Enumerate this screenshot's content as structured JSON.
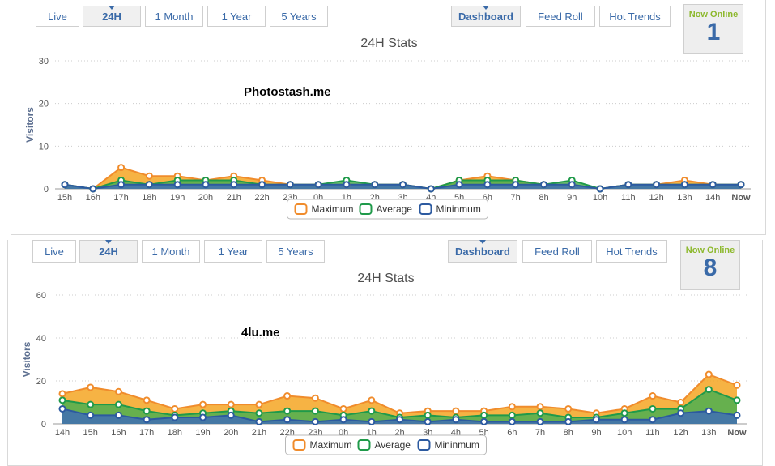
{
  "tabs_left": [
    "Live",
    "24H",
    "1 Month",
    "1 Year",
    "5 Years"
  ],
  "tabs_right": [
    "Dashboard",
    "Feed Roll",
    "Hot Trends"
  ],
  "online_label": "Now Online",
  "colors": {
    "maximum": "#f5a623",
    "average": "#4caf50",
    "minimum": "#3f6eb5",
    "max_stroke": "#f08c2c",
    "avg_stroke": "#1f9a4a",
    "min_stroke": "#2c5aa0"
  },
  "chart_data": [
    {
      "type": "area",
      "title": "24H Stats",
      "ylabel": "Visitors",
      "xlabel": "",
      "site_label": "Photostash.me",
      "now_online": "1",
      "ylim": [
        0,
        30
      ],
      "yticks": [
        0,
        10,
        20,
        30
      ],
      "grid": true,
      "legend_position": "bottom-center",
      "x": [
        "15h",
        "16h",
        "17h",
        "18h",
        "19h",
        "20h",
        "21h",
        "22h",
        "23h",
        "0h",
        "1h",
        "2h",
        "3h",
        "4h",
        "5h",
        "6h",
        "7h",
        "8h",
        "9h",
        "10h",
        "11h",
        "12h",
        "13h",
        "14h",
        "Now"
      ],
      "series": [
        {
          "name": "Maximum",
          "values": [
            1,
            0,
            5,
            3,
            3,
            2,
            3,
            2,
            1,
            1,
            1,
            1,
            1,
            0,
            2,
            3,
            2,
            1,
            1,
            0,
            1,
            1,
            2,
            1,
            1
          ]
        },
        {
          "name": "Average",
          "values": [
            1,
            0,
            2,
            1,
            2,
            2,
            2,
            1,
            1,
            1,
            2,
            1,
            1,
            0,
            2,
            2,
            2,
            1,
            2,
            0,
            1,
            1,
            1,
            1,
            1
          ]
        },
        {
          "name": "Mininmum",
          "values": [
            1,
            0,
            1,
            1,
            1,
            1,
            1,
            1,
            1,
            1,
            1,
            1,
            1,
            0,
            1,
            1,
            1,
            1,
            1,
            0,
            1,
            1,
            1,
            1,
            1
          ]
        }
      ]
    },
    {
      "type": "area",
      "title": "24H Stats",
      "ylabel": "Visitors",
      "xlabel": "",
      "site_label": "4lu.me",
      "now_online": "8",
      "ylim": [
        0,
        60
      ],
      "yticks": [
        0,
        20,
        40,
        60
      ],
      "grid": true,
      "legend_position": "bottom-center",
      "x": [
        "14h",
        "15h",
        "16h",
        "17h",
        "18h",
        "19h",
        "20h",
        "21h",
        "22h",
        "23h",
        "0h",
        "1h",
        "2h",
        "3h",
        "4h",
        "5h",
        "6h",
        "7h",
        "8h",
        "9h",
        "10h",
        "11h",
        "12h",
        "13h",
        "Now"
      ],
      "series": [
        {
          "name": "Maximum",
          "values": [
            14,
            17,
            15,
            11,
            7,
            9,
            9,
            9,
            13,
            12,
            7,
            11,
            5,
            6,
            6,
            6,
            8,
            8,
            7,
            5,
            7,
            13,
            10,
            23,
            18
          ]
        },
        {
          "name": "Average",
          "values": [
            11,
            9,
            9,
            6,
            4,
            5,
            6,
            5,
            6,
            6,
            4,
            6,
            3,
            4,
            3,
            4,
            4,
            5,
            3,
            3,
            5,
            7,
            7,
            16,
            11
          ]
        },
        {
          "name": "Mininmum",
          "values": [
            7,
            4,
            4,
            2,
            3,
            3,
            4,
            1,
            2,
            1,
            2,
            1,
            2,
            1,
            2,
            1,
            1,
            1,
            1,
            2,
            2,
            2,
            5,
            6,
            4
          ]
        }
      ]
    }
  ]
}
